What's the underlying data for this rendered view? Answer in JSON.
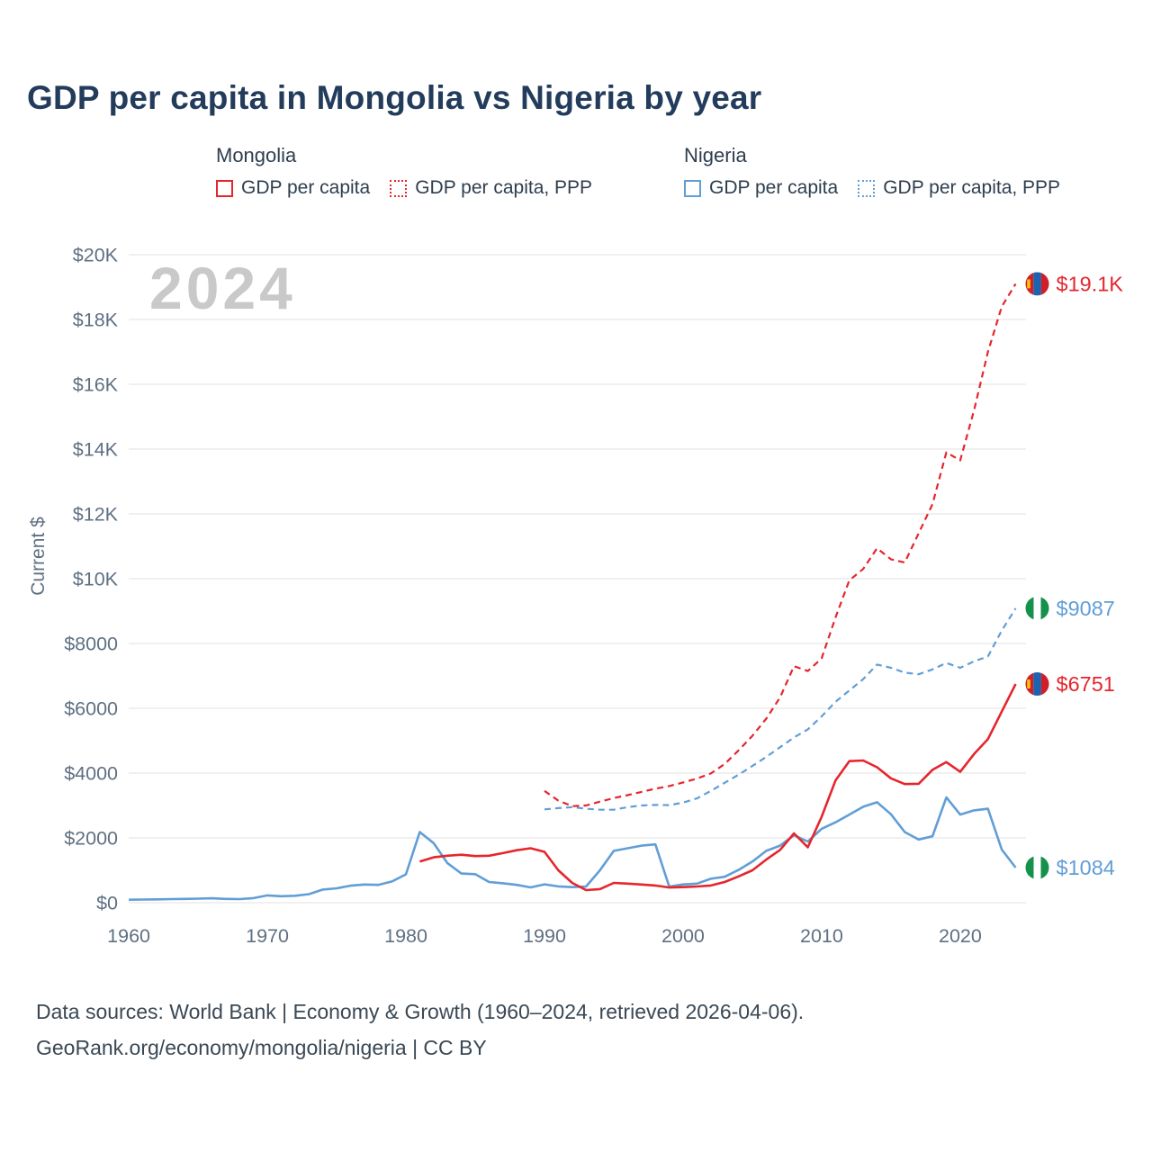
{
  "title": "GDP per capita in Mongolia vs Nigeria by year",
  "watermark": "2024",
  "footer": {
    "line1": "Data sources: World Bank | Economy & Growth (1960–2024, retrieved 2026-04-06).",
    "line2": "GeoRank.org/economy/mongolia/nigeria | CC BY"
  },
  "legend": {
    "groups": [
      {
        "country": "Mongolia",
        "items": [
          {
            "label": "GDP per capita",
            "line": "solid",
            "color": "#e5262d"
          },
          {
            "label": "GDP per capita, PPP",
            "line": "dotted",
            "color": "#e5262d"
          }
        ]
      },
      {
        "country": "Nigeria",
        "items": [
          {
            "label": "GDP per capita",
            "line": "solid",
            "color": "#619ed6"
          },
          {
            "label": "GDP per capita, PPP",
            "line": "dotted",
            "color": "#619ed6"
          }
        ]
      }
    ]
  },
  "chart_data": {
    "type": "line",
    "title": "GDP per capita in Mongolia vs Nigeria by year",
    "xlabel": "",
    "ylabel": "Current $",
    "xlim": [
      1958.5,
      2026.5
    ],
    "ylim": [
      0,
      20000
    ],
    "grid": "horizontal",
    "legend_position": "top",
    "x_ticks": [
      1960,
      1970,
      1980,
      1990,
      2000,
      2010,
      2020
    ],
    "y_ticks": [
      0,
      2000,
      4000,
      6000,
      8000,
      10000,
      12000,
      14000,
      16000,
      18000,
      20000
    ],
    "y_tick_labels": [
      "$0",
      "$2000",
      "$4000",
      "$6000",
      "$8000",
      "$10K",
      "$12K",
      "$14K",
      "$16K",
      "$18K",
      "$20K"
    ],
    "series": [
      {
        "name": "Nigeria GDP per capita, PPP",
        "country": "Nigeria",
        "color": "#619ed6",
        "dash": true,
        "end_label": "$9087",
        "flag": "nigeria",
        "x_start": 1990,
        "x_step": 1,
        "values": [
          2880,
          2920,
          2950,
          2900,
          2870,
          2870,
          2950,
          3000,
          3020,
          3010,
          3090,
          3220,
          3450,
          3700,
          3950,
          4220,
          4500,
          4800,
          5100,
          5350,
          5750,
          6200,
          6550,
          6900,
          7350,
          7250,
          7100,
          7050,
          7200,
          7400,
          7250,
          7450,
          7600,
          8400,
          9087
        ]
      },
      {
        "name": "Mongolia GDP per capita, PPP",
        "country": "Mongolia",
        "color": "#e5262d",
        "dash": true,
        "end_label": "$19.1K",
        "flag": "mongolia",
        "x_start": 1990,
        "x_step": 1,
        "values": [
          3450,
          3150,
          2980,
          3000,
          3120,
          3230,
          3320,
          3420,
          3520,
          3600,
          3710,
          3830,
          3990,
          4280,
          4700,
          5150,
          5680,
          6340,
          7300,
          7150,
          7540,
          8800,
          9950,
          10300,
          10940,
          10600,
          10500,
          11400,
          12300,
          13900,
          13650,
          15200,
          17000,
          18400,
          19100
        ]
      },
      {
        "name": "Nigeria GDP per capita",
        "country": "Nigeria",
        "color": "#619ed6",
        "dash": false,
        "end_label": "$1084",
        "flag": "nigeria",
        "x_start": 1960,
        "x_step": 1,
        "values": [
          93,
          97,
          104,
          110,
          118,
          126,
          136,
          116,
          112,
          141,
          224,
          199,
          214,
          264,
          406,
          444,
          525,
          560,
          551,
          655,
          874,
          2180,
          1840,
          1220,
          900,
          880,
          640,
          600,
          550,
          472,
          567,
          503,
          480,
          500,
          1000,
          1600,
          1680,
          1760,
          1800,
          497,
          565,
          590,
          740,
          800,
          1010,
          1270,
          1600,
          1760,
          2080,
          1890,
          2280,
          2480,
          2720,
          2960,
          3100,
          2730,
          2180,
          1950,
          2050,
          3250,
          2720,
          2850,
          2900,
          1640,
          1084
        ]
      },
      {
        "name": "Mongolia GDP per capita",
        "country": "Mongolia",
        "color": "#e5262d",
        "dash": false,
        "end_label": "$6751",
        "flag": "mongolia",
        "x_start": 1981,
        "x_step": 1,
        "values": [
          1270,
          1400,
          1450,
          1480,
          1440,
          1450,
          1530,
          1620,
          1680,
          1570,
          1000,
          610,
          390,
          420,
          610,
          590,
          560,
          530,
          470,
          480,
          500,
          530,
          640,
          810,
          1000,
          1330,
          1630,
          2140,
          1710,
          2650,
          3770,
          4370,
          4390,
          4180,
          3840,
          3660,
          3670,
          4100,
          4340,
          4040,
          4590,
          5050,
          5900,
          6751
        ]
      }
    ]
  }
}
